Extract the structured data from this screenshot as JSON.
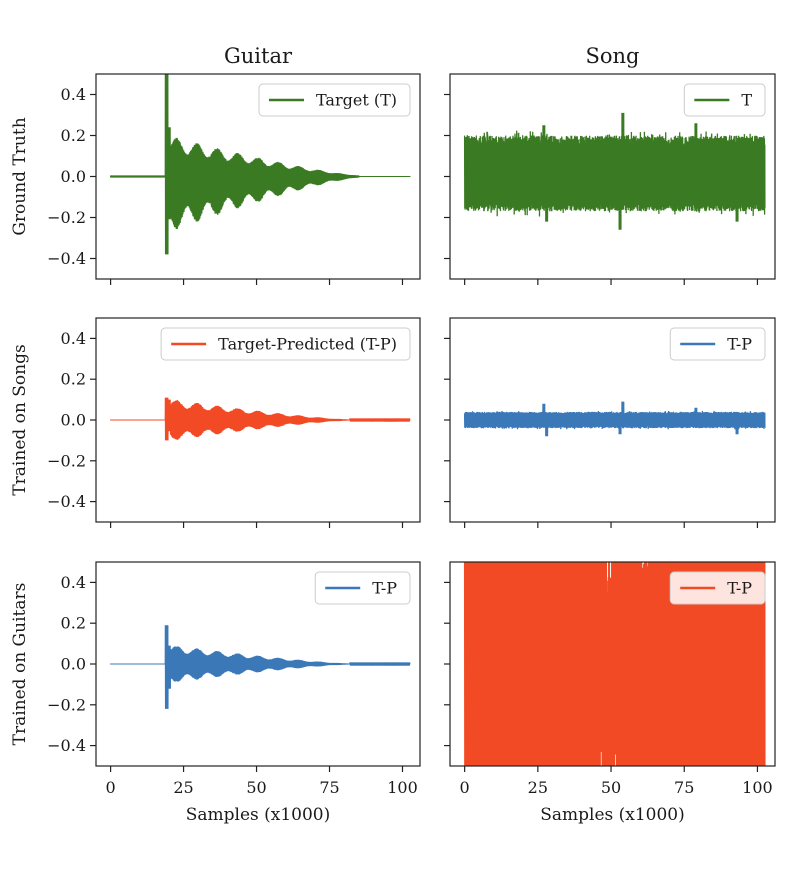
{
  "figure": {
    "column_titles": [
      "Guitar",
      "Song"
    ],
    "row_labels": [
      "Ground Truth",
      "Trained on Songs",
      "Trained on Guitars"
    ],
    "xlabel": "Samples (x1000)"
  },
  "colors": {
    "green": "#3a7a22",
    "orange": "#f24a24",
    "blue": "#3a78b8"
  },
  "chart_data": [
    {
      "type": "line",
      "panel": "guitar-ground-truth",
      "legend": "Target (T)",
      "legend_position": "upper right",
      "color": "#3a7a22",
      "xlim": [
        -5,
        106
      ],
      "ylim": [
        -0.5,
        0.5
      ],
      "xticks": [
        0,
        25,
        50,
        75,
        100
      ],
      "xtick_labels": [
        "",
        "",
        "",
        "",
        ""
      ],
      "yticks": [
        -0.4,
        -0.2,
        0.0,
        0.2,
        0.4
      ],
      "ytick_labels": [
        "−0.4",
        "−0.2",
        "0.0",
        "0.2",
        "0.4"
      ],
      "signal": {
        "kind": "pluck",
        "x_range": [
          0,
          102.5
        ],
        "onset": 19,
        "decay_end": 85,
        "spike_top": 0.5,
        "spike_bottom": -0.38,
        "body_top": 0.19,
        "body_bottom": -0.26,
        "spike_after": 0.24,
        "floor": 0.005
      }
    },
    {
      "type": "line",
      "panel": "song-ground-truth",
      "legend": "T",
      "legend_position": "upper right",
      "color": "#3a7a22",
      "xlim": [
        -5,
        106
      ],
      "ylim": [
        -0.5,
        0.5
      ],
      "xticks": [
        0,
        25,
        50,
        75,
        100
      ],
      "xtick_labels": [
        "",
        "",
        "",
        "",
        ""
      ],
      "yticks": [
        -0.4,
        -0.2,
        0.0,
        0.2,
        0.4
      ],
      "ytick_labels": [
        "",
        "",
        "",
        "",
        ""
      ],
      "signal": {
        "kind": "band",
        "x_range": [
          0,
          102.5
        ],
        "band_top": 0.2,
        "band_bottom": -0.17,
        "peaks": [
          [
            27,
            0.25
          ],
          [
            54,
            0.31
          ],
          [
            79,
            0.26
          ]
        ],
        "troughs": [
          [
            28,
            -0.22
          ],
          [
            53,
            -0.26
          ],
          [
            93,
            -0.22
          ]
        ]
      }
    },
    {
      "type": "line",
      "panel": "guitar-trained-on-songs",
      "legend": "Target-Predicted (T-P)",
      "legend_position": "upper right",
      "color": "#f24a24",
      "xlim": [
        -5,
        106
      ],
      "ylim": [
        -0.5,
        0.5
      ],
      "xticks": [
        0,
        25,
        50,
        75,
        100
      ],
      "xtick_labels": [
        "",
        "",
        "",
        "",
        ""
      ],
      "yticks": [
        -0.4,
        -0.2,
        0.0,
        0.2,
        0.4
      ],
      "ytick_labels": [
        "−0.4",
        "−0.2",
        "0.0",
        "0.2",
        "0.4"
      ],
      "signal": {
        "kind": "pluck",
        "x_range": [
          0,
          102.5
        ],
        "onset": 19,
        "decay_end": 82,
        "spike_top": 0.11,
        "spike_bottom": -0.1,
        "body_top": 0.1,
        "body_bottom": -0.1,
        "spike_after": 0.1,
        "floor": 0.002
      }
    },
    {
      "type": "line",
      "panel": "song-trained-on-songs",
      "legend": "T-P",
      "legend_position": "upper right",
      "color": "#3a78b8",
      "xlim": [
        -5,
        106
      ],
      "ylim": [
        -0.5,
        0.5
      ],
      "xticks": [
        0,
        25,
        50,
        75,
        100
      ],
      "xtick_labels": [
        "",
        "",
        "",
        "",
        ""
      ],
      "yticks": [
        -0.4,
        -0.2,
        0.0,
        0.2,
        0.4
      ],
      "ytick_labels": [
        "",
        "",
        "",
        "",
        ""
      ],
      "signal": {
        "kind": "band",
        "x_range": [
          0,
          102.5
        ],
        "band_top": 0.04,
        "band_bottom": -0.04,
        "peaks": [
          [
            27,
            0.08
          ],
          [
            54,
            0.09
          ],
          [
            79,
            0.06
          ]
        ],
        "troughs": [
          [
            28,
            -0.08
          ],
          [
            53,
            -0.07
          ],
          [
            93,
            -0.07
          ]
        ]
      }
    },
    {
      "type": "line",
      "panel": "guitar-trained-on-guitars",
      "legend": "T-P",
      "legend_position": "upper right",
      "color": "#3a78b8",
      "xlim": [
        -5,
        106
      ],
      "ylim": [
        -0.5,
        0.5
      ],
      "xticks": [
        0,
        25,
        50,
        75,
        100
      ],
      "xtick_labels": [
        "0",
        "25",
        "50",
        "75",
        "100"
      ],
      "yticks": [
        -0.4,
        -0.2,
        0.0,
        0.2,
        0.4
      ],
      "ytick_labels": [
        "−0.4",
        "−0.2",
        "0.0",
        "0.2",
        "0.4"
      ],
      "signal": {
        "kind": "pluck",
        "x_range": [
          0,
          102.5
        ],
        "onset": 19,
        "decay_end": 82,
        "spike_top": 0.19,
        "spike_bottom": -0.22,
        "body_top": 0.09,
        "body_bottom": -0.09,
        "spike_after": 0.09,
        "floor": 0.002
      }
    },
    {
      "type": "line",
      "panel": "song-trained-on-guitars",
      "legend": "T-P",
      "legend_position": "upper right",
      "color": "#f24a24",
      "xlim": [
        -5,
        106
      ],
      "ylim": [
        -0.5,
        0.5
      ],
      "xticks": [
        0,
        25,
        50,
        75,
        100
      ],
      "xtick_labels": [
        "0",
        "25",
        "50",
        "75",
        "100"
      ],
      "yticks": [
        -0.4,
        -0.2,
        0.0,
        0.2,
        0.4
      ],
      "ytick_labels": [
        "",
        "",
        "",
        "",
        ""
      ],
      "signal": {
        "kind": "saturated",
        "x_range": [
          0,
          102.5
        ],
        "amplitude": 0.5,
        "dips": [
          [
            44,
            52,
            0.3
          ],
          [
            60,
            63,
            0.35
          ],
          [
            37,
            40,
            0.4
          ]
        ]
      }
    }
  ]
}
